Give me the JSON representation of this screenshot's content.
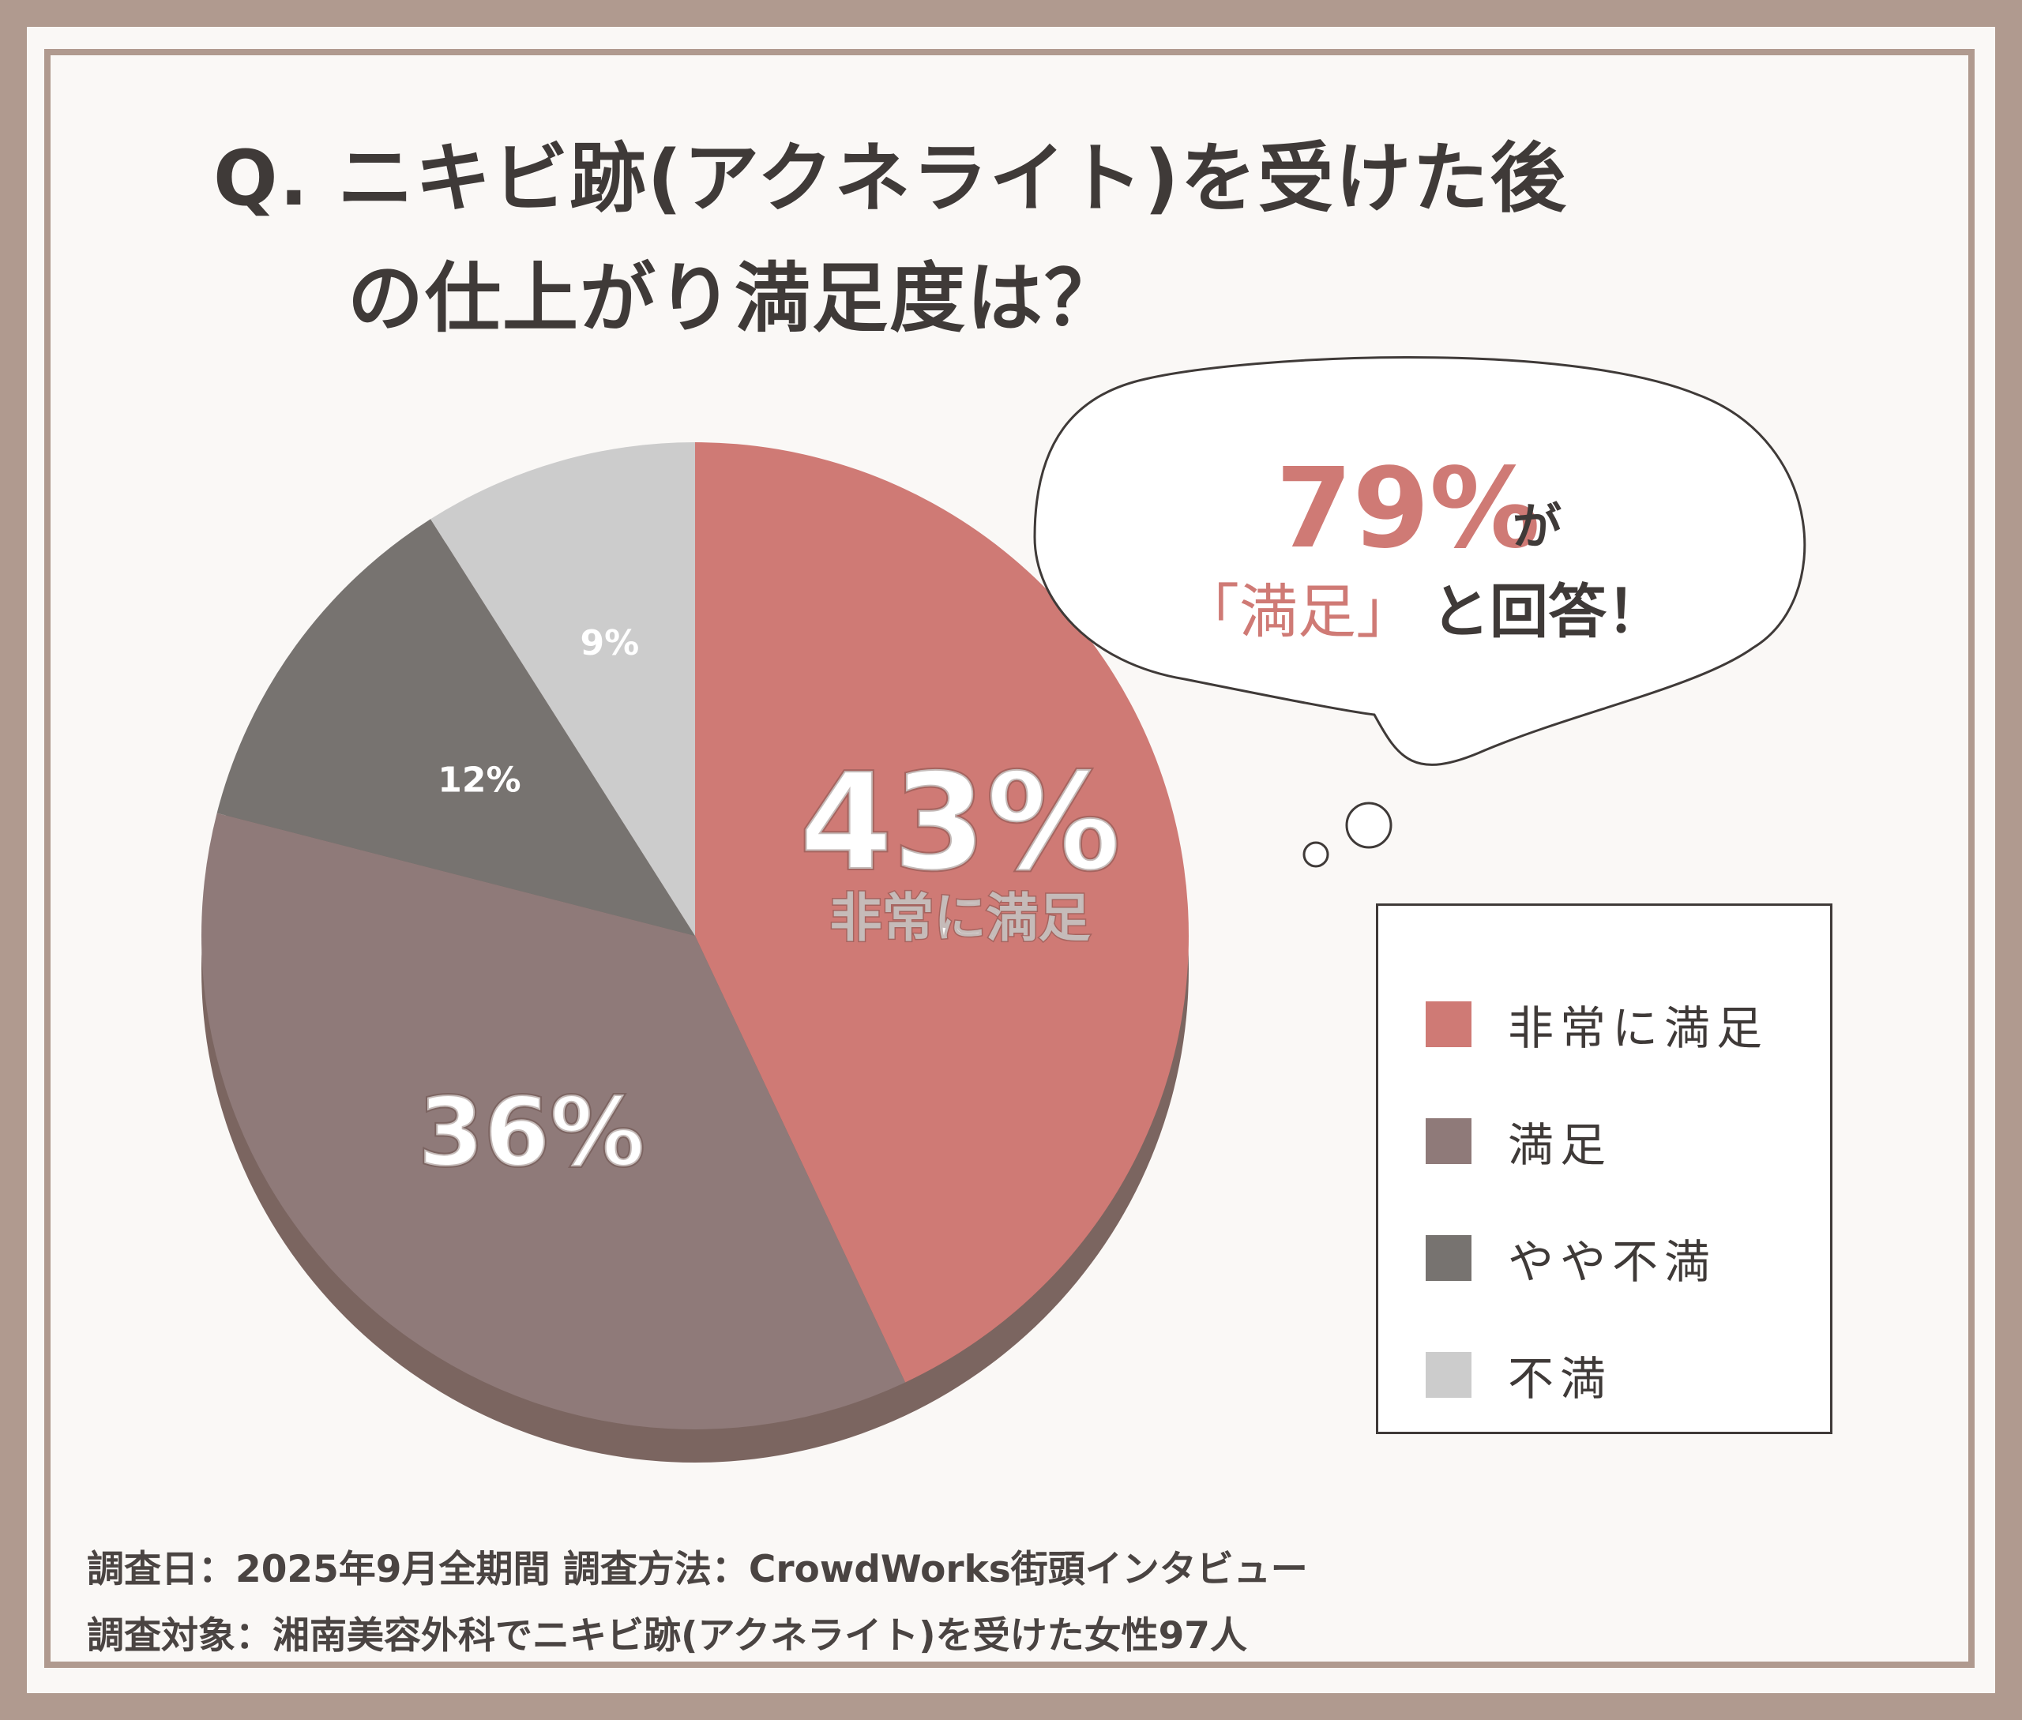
{
  "title": {
    "line1": "Q. ニキビ跡(アクネライト)を受けた後",
    "line2": "の仕上がり満足度は？"
  },
  "callout": {
    "percent": "79%",
    "particle": "が",
    "quote": "「満足」",
    "rest": "と回答！"
  },
  "chart_data": {
    "type": "pie",
    "categories": [
      "非常に満足",
      "満足",
      "やや不満",
      "不満"
    ],
    "values": [
      43,
      36,
      12,
      9
    ],
    "value_labels": [
      "43%",
      "36%",
      "12%",
      "9%"
    ],
    "slice_caption": "非常に満足",
    "colors": [
      "#cf7a75",
      "#8f7a79",
      "#777370",
      "#cccccc"
    ],
    "legend_position": "right"
  },
  "legend": {
    "items": [
      {
        "label": "非常に満足",
        "color": "#cf7a75"
      },
      {
        "label": "満足",
        "color": "#8f7a79"
      },
      {
        "label": "やや不満",
        "color": "#777370"
      },
      {
        "label": "不満",
        "color": "#cccccc"
      }
    ]
  },
  "footer": {
    "line1": "調査日：2025年9月全期間  調査方法：CrowdWorks街頭インタビュー",
    "line2": "調査対象：湘南美容外科でニキビ跡(アクネライト)を受けた女性97人"
  },
  "colors": {
    "frame": "#b09a8f",
    "accent": "#cf7a75",
    "text": "#3f3a38"
  }
}
